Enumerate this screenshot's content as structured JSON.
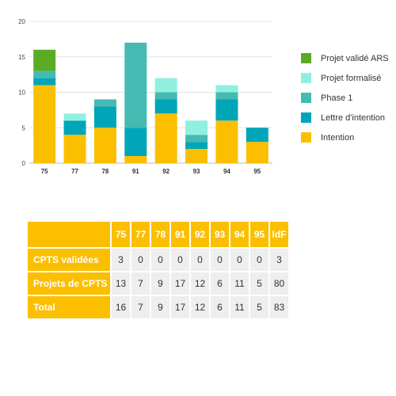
{
  "chart_data": {
    "type": "bar",
    "stacked": true,
    "categories": [
      "75",
      "77",
      "78",
      "91",
      "92",
      "93",
      "94",
      "95"
    ],
    "ylim": [
      0,
      20
    ],
    "yticks": [
      0,
      5,
      10,
      15,
      20
    ],
    "grid": true,
    "legend_position": "right",
    "series": [
      {
        "name": "Intention",
        "color": "#fbbf00",
        "values": [
          11,
          4,
          5,
          1,
          7,
          2,
          6,
          3
        ]
      },
      {
        "name": "Lettre d'intention",
        "color": "#00a6b8",
        "values": [
          1,
          2,
          3,
          4,
          2,
          1,
          3,
          2
        ]
      },
      {
        "name": "Phase 1",
        "color": "#45bab2",
        "values": [
          1,
          0,
          1,
          12,
          1,
          1,
          1,
          0
        ]
      },
      {
        "name": "Projet formalisé",
        "color": "#8ff0e0",
        "values": [
          0,
          1,
          0,
          0,
          2,
          2,
          1,
          0
        ]
      },
      {
        "name": "Projet validé ARS",
        "color": "#5aab25",
        "values": [
          3,
          0,
          0,
          0,
          0,
          0,
          0,
          0
        ]
      }
    ]
  },
  "table": {
    "headers": [
      "75",
      "77",
      "78",
      "91",
      "92",
      "93",
      "94",
      "95",
      "IdF"
    ],
    "rows": [
      {
        "label": "CPTS validées",
        "values": [
          "3",
          "0",
          "0",
          "0",
          "0",
          "0",
          "0",
          "0",
          "3"
        ]
      },
      {
        "label": "Projets de CPTS",
        "values": [
          "13",
          "7",
          "9",
          "17",
          "12",
          "6",
          "11",
          "5",
          "80"
        ]
      },
      {
        "label": "Total",
        "values": [
          "16",
          "7",
          "9",
          "17",
          "12",
          "6",
          "11",
          "5",
          "83"
        ]
      }
    ]
  }
}
